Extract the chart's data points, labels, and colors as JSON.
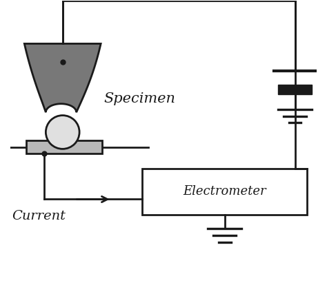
{
  "fig_width": 4.74,
  "fig_height": 4.46,
  "dpi": 100,
  "bg_color": "#ffffff",
  "line_color": "#1a1a1a",
  "gray_dark": "#787878",
  "gray_light": "#e0e0e0",
  "gray_plate": "#b8b8b8",
  "specimen_label": "Specimen",
  "current_label": "Current",
  "electrometer_label": "Electrometer"
}
